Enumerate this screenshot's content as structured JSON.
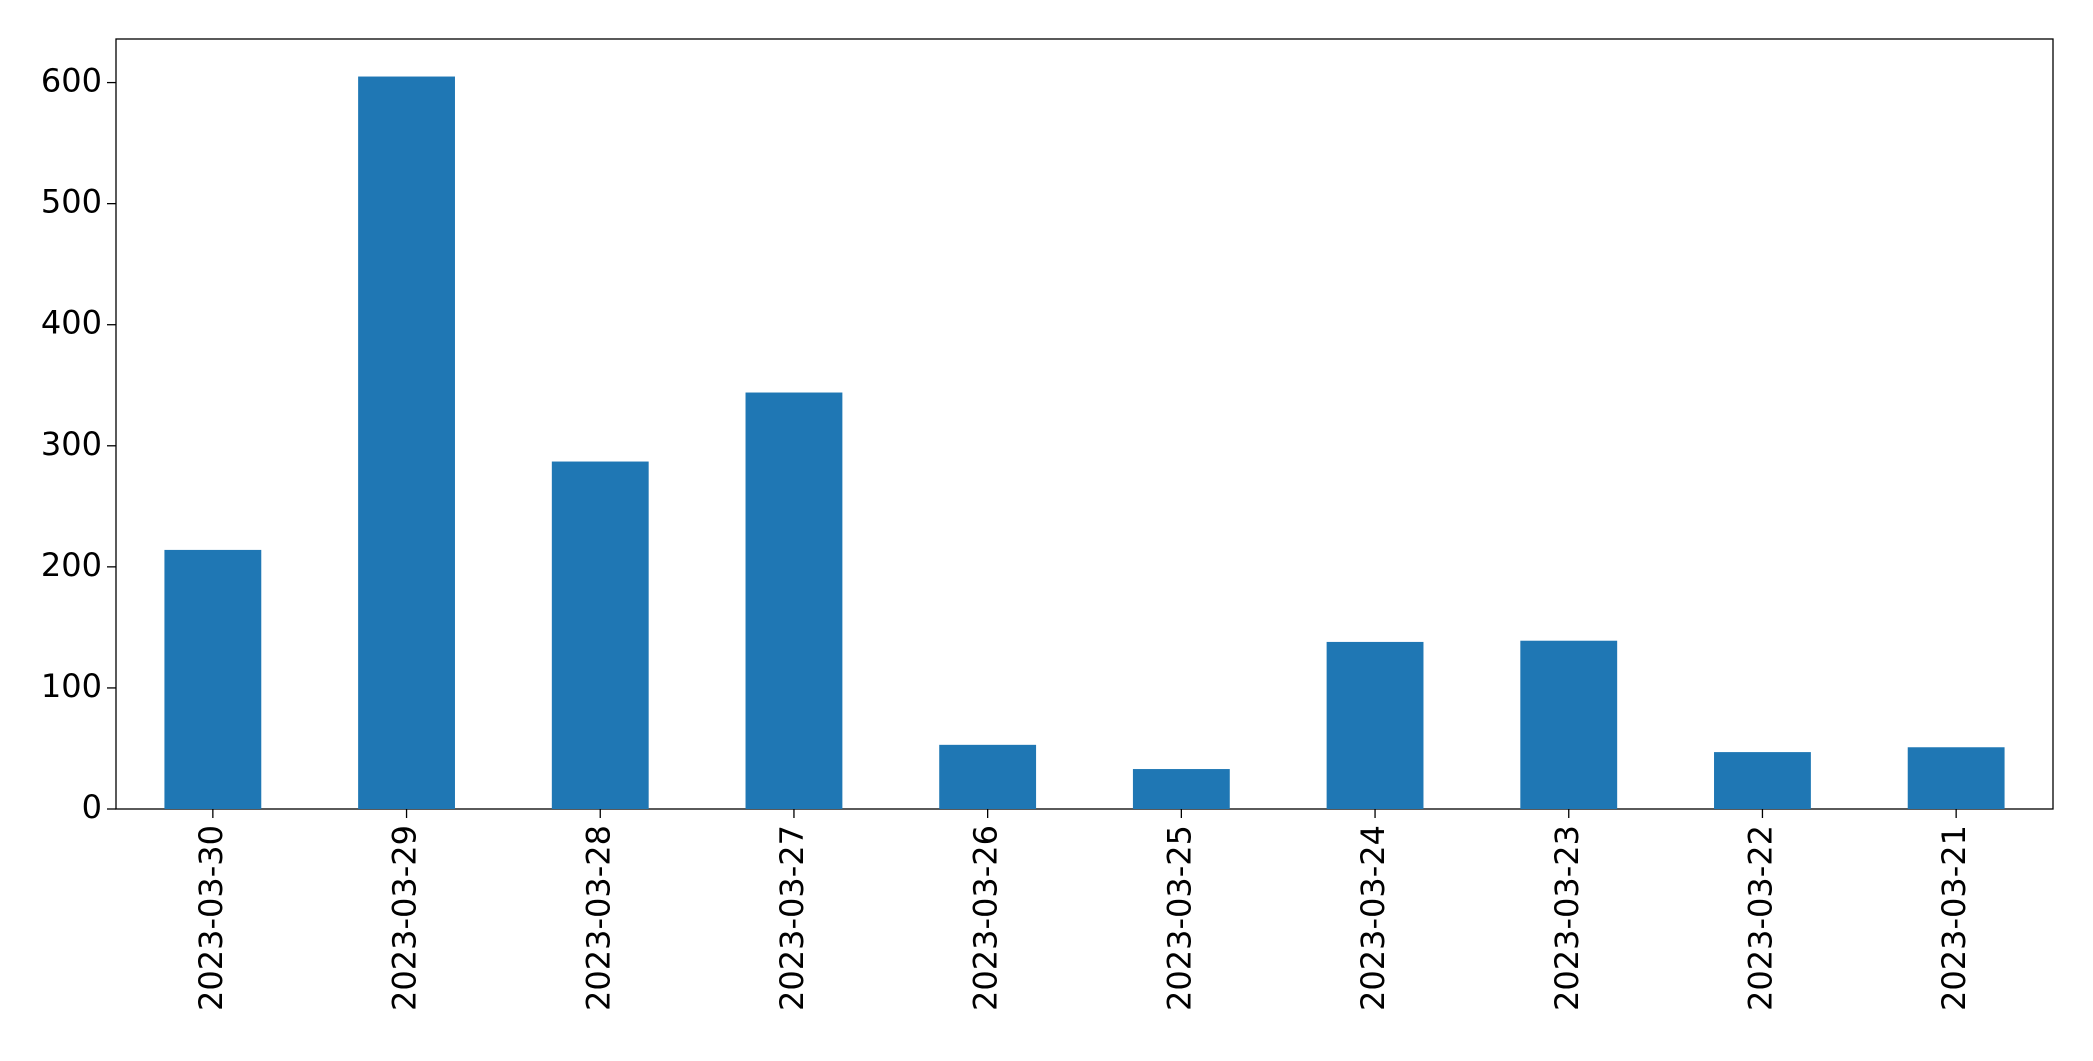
{
  "chart_data": {
    "type": "bar",
    "categories": [
      "2023-03-30",
      "2023-03-29",
      "2023-03-28",
      "2023-03-27",
      "2023-03-26",
      "2023-03-25",
      "2023-03-24",
      "2023-03-23",
      "2023-03-22",
      "2023-03-21"
    ],
    "values": [
      214,
      605,
      287,
      344,
      53,
      33,
      138,
      139,
      47,
      51
    ],
    "color": "#1f77b4",
    "ylim": [
      0,
      636
    ],
    "yticks": [
      0,
      100,
      200,
      300,
      400,
      500,
      600
    ],
    "grid": false
  }
}
